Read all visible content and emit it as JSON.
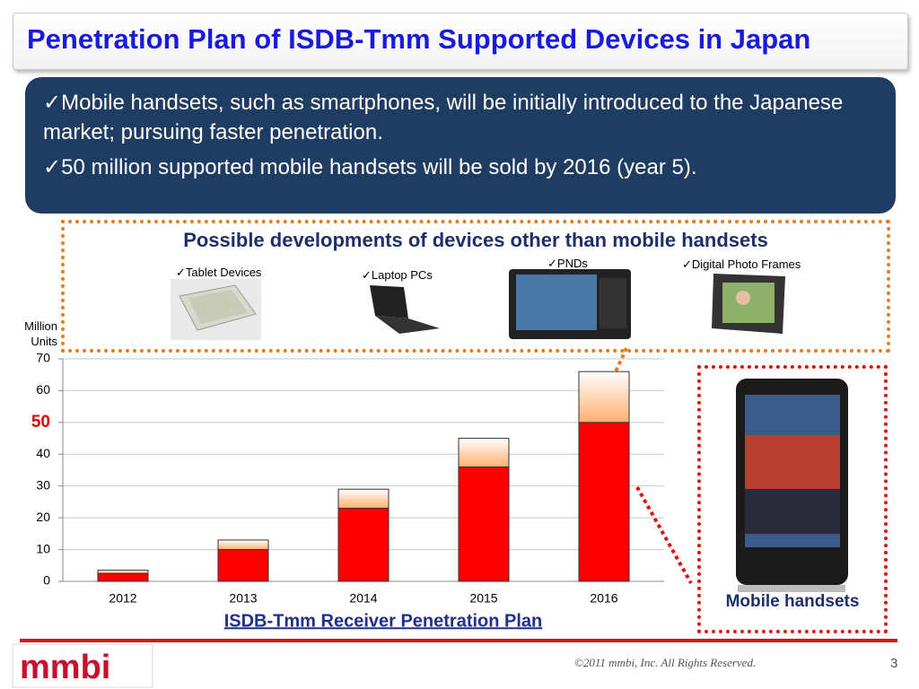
{
  "slide": {
    "title": "Penetration Plan of ISDB-Tmm Supported Devices in Japan",
    "bullets": [
      "✓Mobile handsets, such as smartphones, will be initially introduced to the Japanese market; pursuing faster penetration.",
      "✓50 million supported mobile handsets will be sold by 2016 (year 5)."
    ],
    "devices_heading": "Possible developments of devices other than mobile handsets",
    "devices": [
      "✓Tablet Devices",
      "✓Laptop PCs",
      "✓PNDs",
      "✓Digital Photo Frames"
    ],
    "logo": "mmbi",
    "copyright": "©2011 mmbi, Inc. All Rights Reserved.",
    "page": "3"
  },
  "chart_data": {
    "type": "stacked_bar",
    "title": "ISDB-Tmm Receiver Penetration Plan",
    "ylabel": "Million Units",
    "categories": [
      "2012",
      "2013",
      "2014",
      "2015",
      "2016"
    ],
    "series": [
      {
        "name": "Mobile handsets",
        "color": "#ff0000",
        "values": [
          2.5,
          10,
          23,
          36,
          50
        ]
      },
      {
        "color": "#ffc890",
        "values": [
          1,
          3,
          6,
          9,
          16
        ]
      }
    ],
    "ylim": [
      0,
      70
    ],
    "yticks": [
      0,
      10,
      20,
      30,
      40,
      50,
      60,
      70
    ],
    "grid": true,
    "highlight_tick": 50,
    "highlight_color": "#e00000"
  }
}
